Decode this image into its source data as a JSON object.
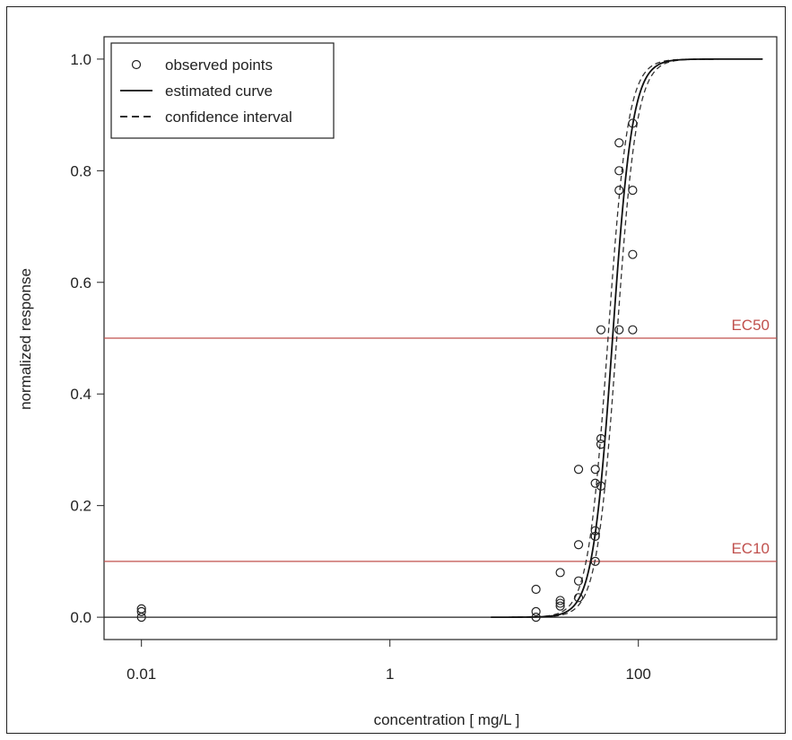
{
  "chart_data": {
    "type": "scatter",
    "title": "",
    "xlabel": "concentration [ mg/L ]",
    "ylabel": "normalized response",
    "x_scale": "log",
    "xlim": [
      0.005,
      1300
    ],
    "ylim": [
      -0.04,
      1.04
    ],
    "x_ticks": [
      0.01,
      1,
      100
    ],
    "x_tick_labels": [
      "0.01",
      "1",
      "100"
    ],
    "y_ticks": [
      0.0,
      0.2,
      0.4,
      0.6,
      0.8,
      1.0
    ],
    "y_tick_labels": [
      "0.0",
      "0.2",
      "0.4",
      "0.6",
      "0.8",
      "1.0"
    ],
    "grid": false,
    "legend_position": "top-left",
    "legend": [
      {
        "label": "observed points",
        "style": "circle"
      },
      {
        "label": "estimated curve",
        "style": "solid"
      },
      {
        "label": "confidence interval",
        "style": "dashed"
      }
    ],
    "reference_lines": [
      {
        "label": "EC50",
        "y": 0.5,
        "color": "#c0504d"
      },
      {
        "label": "EC10",
        "y": 0.1,
        "color": "#c0504d"
      }
    ],
    "baseline_y": 0.0,
    "curve": {
      "model": "log-logistic",
      "ec50": 62,
      "slope": 5.4,
      "ci_ec50_low": 57,
      "ci_ec50_high": 67,
      "x_range": [
        6.5,
        1000
      ]
    },
    "series": [
      {
        "name": "observed points",
        "points": [
          [
            0.01,
            0.0
          ],
          [
            0.01,
            0.01
          ],
          [
            0.01,
            0.015
          ],
          [
            15,
            0.0
          ],
          [
            15,
            0.01
          ],
          [
            15,
            0.05
          ],
          [
            23.5,
            0.02
          ],
          [
            23.5,
            0.025
          ],
          [
            23.5,
            0.03
          ],
          [
            23.5,
            0.08
          ],
          [
            33,
            0.035
          ],
          [
            33,
            0.065
          ],
          [
            33,
            0.13
          ],
          [
            33,
            0.265
          ],
          [
            45,
            0.1
          ],
          [
            45,
            0.145
          ],
          [
            45,
            0.155
          ],
          [
            45,
            0.24
          ],
          [
            45,
            0.265
          ],
          [
            50,
            0.235
          ],
          [
            50,
            0.31
          ],
          [
            50,
            0.32
          ],
          [
            50,
            0.515
          ],
          [
            70,
            0.515
          ],
          [
            70,
            0.765
          ],
          [
            70,
            0.8
          ],
          [
            70,
            0.85
          ],
          [
            90,
            0.515
          ],
          [
            90,
            0.65
          ],
          [
            90,
            0.765
          ],
          [
            90,
            0.885
          ]
        ]
      }
    ]
  }
}
